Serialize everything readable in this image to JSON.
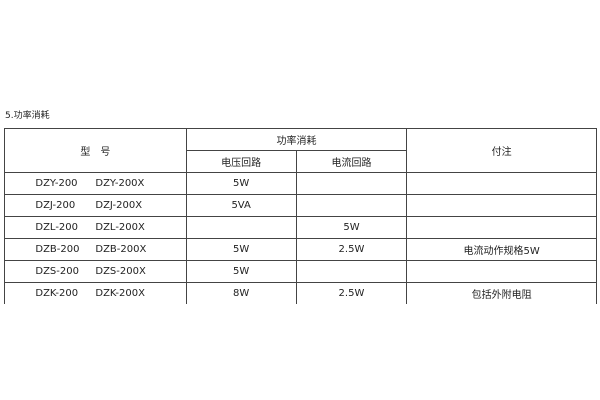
{
  "section_title": "5.功率消耗",
  "table": {
    "headers": {
      "model": "型　号",
      "power": "功率消耗",
      "voltage": "电压回路",
      "current": "电流回路",
      "note": "付注"
    },
    "rows": [
      {
        "model_a": "DZY-200",
        "model_b": "DZY-200X",
        "voltage": "5W",
        "current": "",
        "note": ""
      },
      {
        "model_a": "DZJ-200",
        "model_b": "DZJ-200X",
        "voltage": "5VA",
        "current": "",
        "note": ""
      },
      {
        "model_a": "DZL-200",
        "model_b": "DZL-200X",
        "voltage": "",
        "current": "5W",
        "note": ""
      },
      {
        "model_a": "DZB-200",
        "model_b": "DZB-200X",
        "voltage": "5W",
        "current": "2.5W",
        "note": "电流动作规格5W"
      },
      {
        "model_a": "DZS-200",
        "model_b": "DZS-200X",
        "voltage": "5W",
        "current": "",
        "note": ""
      },
      {
        "model_a": "DZK-200",
        "model_b": "DZK-200X",
        "voltage": "8W",
        "current": "2.5W",
        "note": "包括外附电阻"
      }
    ]
  }
}
